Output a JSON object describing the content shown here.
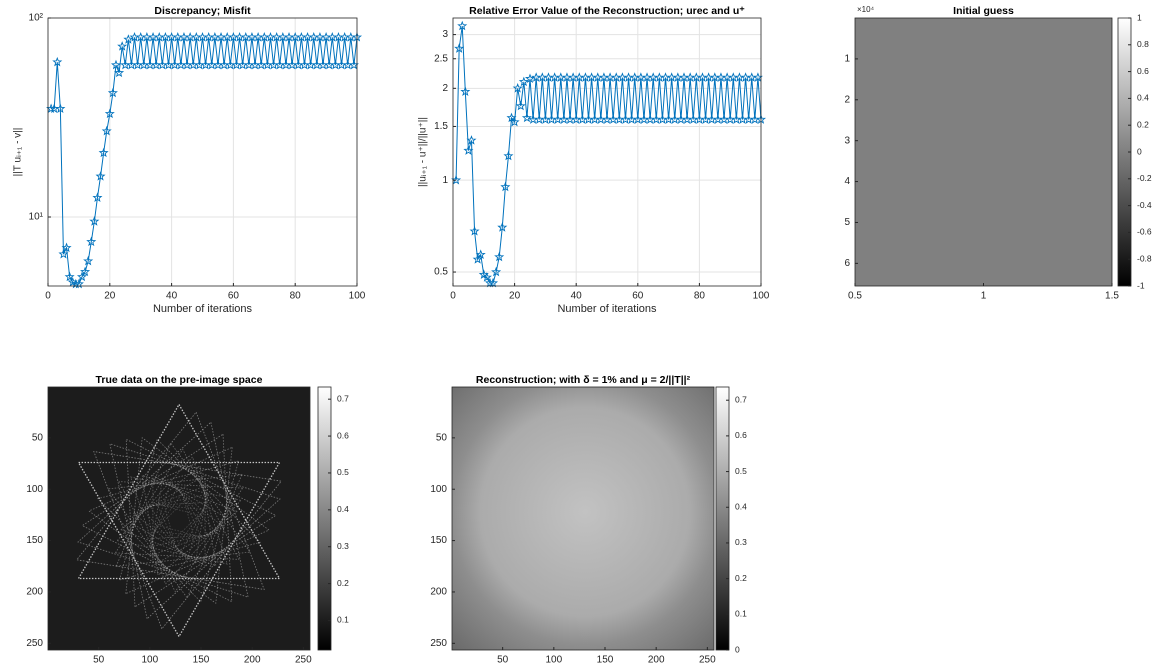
{
  "chart_data": [
    {
      "type": "line",
      "title": "Discrepancy; Misfit",
      "xlabel": "Number of iterations",
      "ylabel": "||T uᵢ₊₁ - v||",
      "yscale": "log",
      "grid": true,
      "xlim": [
        0,
        100
      ],
      "ylim": [
        4.5,
        100
      ],
      "xticks": [
        0,
        20,
        40,
        60,
        80,
        100
      ],
      "yticks": [
        {
          "value": 10,
          "label": "10¹"
        },
        {
          "value": 100,
          "label": "10²"
        }
      ],
      "x": [
        1,
        2,
        3,
        4,
        5,
        6,
        7,
        8,
        9,
        10,
        11,
        12,
        13,
        14,
        15,
        16,
        17,
        18,
        19,
        20,
        21,
        22,
        23,
        24,
        25,
        26,
        27,
        28,
        29,
        30,
        31,
        32,
        33,
        34,
        35,
        36,
        37,
        38,
        39,
        40,
        41,
        42,
        43,
        44,
        45,
        46,
        47,
        48,
        49,
        50,
        51,
        52,
        53,
        54,
        55,
        56,
        57,
        58,
        59,
        60,
        61,
        62,
        63,
        64,
        65,
        66,
        67,
        68,
        69,
        70,
        71,
        72,
        73,
        74,
        75,
        76,
        77,
        78,
        79,
        80,
        81,
        82,
        83,
        84,
        85,
        86,
        87,
        88,
        89,
        90,
        91,
        92,
        93,
        94,
        95,
        96,
        97,
        98,
        99,
        100
      ],
      "series": [
        {
          "color": "#0072bd",
          "marker": "star",
          "values": [
            35,
            35,
            60,
            35,
            6.5,
            7,
            5,
            4.7,
            4.6,
            4.6,
            5,
            5.3,
            6,
            7.5,
            9.5,
            12.5,
            16,
            21,
            27,
            33,
            42,
            58,
            53,
            72,
            58,
            78,
            58,
            80,
            58,
            80,
            58,
            80,
            58,
            80,
            58,
            80,
            58,
            80,
            58,
            80,
            58,
            80,
            58,
            80,
            58,
            80,
            58,
            80,
            58,
            80,
            58,
            80,
            58,
            80,
            58,
            80,
            58,
            80,
            58,
            80,
            58,
            80,
            58,
            80,
            58,
            80,
            58,
            80,
            58,
            80,
            58,
            80,
            58,
            80,
            58,
            80,
            58,
            80,
            58,
            80,
            58,
            80,
            58,
            80,
            58,
            80,
            58,
            80,
            58,
            80,
            58,
            80,
            58,
            80,
            58,
            80,
            58,
            80,
            58,
            80
          ]
        }
      ]
    },
    {
      "type": "line",
      "title": "Relative Error Value of the Reconstruction; urec and u⁺",
      "xlabel": "Number of iterations",
      "ylabel": "||uᵢ₊₁ - u⁺||/||u⁺||",
      "yscale": "log",
      "grid": true,
      "xlim": [
        0,
        100
      ],
      "ylim": [
        0.45,
        3.4
      ],
      "xticks": [
        0,
        20,
        40,
        60,
        80,
        100
      ],
      "yticks": [
        0.5,
        1,
        1.5,
        2,
        2.5,
        3
      ],
      "x": [
        1,
        2,
        3,
        4,
        5,
        6,
        7,
        8,
        9,
        10,
        11,
        12,
        13,
        14,
        15,
        16,
        17,
        18,
        19,
        20,
        21,
        22,
        23,
        24,
        25,
        26,
        27,
        28,
        29,
        30,
        31,
        32,
        33,
        34,
        35,
        36,
        37,
        38,
        39,
        40,
        41,
        42,
        43,
        44,
        45,
        46,
        47,
        48,
        49,
        50,
        51,
        52,
        53,
        54,
        55,
        56,
        57,
        58,
        59,
        60,
        61,
        62,
        63,
        64,
        65,
        66,
        67,
        68,
        69,
        70,
        71,
        72,
        73,
        74,
        75,
        76,
        77,
        78,
        79,
        80,
        81,
        82,
        83,
        84,
        85,
        86,
        87,
        88,
        89,
        90,
        91,
        92,
        93,
        94,
        95,
        96,
        97,
        98,
        99,
        100
      ],
      "series": [
        {
          "color": "#0072bd",
          "marker": "star",
          "values": [
            1.0,
            2.7,
            3.2,
            1.95,
            1.25,
            1.35,
            0.68,
            0.55,
            0.57,
            0.49,
            0.48,
            0.46,
            0.46,
            0.5,
            0.56,
            0.7,
            0.95,
            1.2,
            1.6,
            1.55,
            2.0,
            1.75,
            2.1,
            1.6,
            2.15,
            1.58,
            2.17,
            1.58,
            2.17,
            1.58,
            2.17,
            1.58,
            2.17,
            1.58,
            2.17,
            1.58,
            2.17,
            1.58,
            2.17,
            1.58,
            2.17,
            1.58,
            2.17,
            1.58,
            2.17,
            1.58,
            2.17,
            1.58,
            2.17,
            1.58,
            2.17,
            1.58,
            2.17,
            1.58,
            2.17,
            1.58,
            2.17,
            1.58,
            2.17,
            1.58,
            2.17,
            1.58,
            2.17,
            1.58,
            2.17,
            1.58,
            2.17,
            1.58,
            2.17,
            1.58,
            2.17,
            1.58,
            2.17,
            1.58,
            2.17,
            1.58,
            2.17,
            1.58,
            2.17,
            1.58,
            2.17,
            1.58,
            2.17,
            1.58,
            2.17,
            1.58,
            2.17,
            1.58,
            2.17,
            1.58,
            2.17,
            1.58,
            2.17,
            1.58,
            2.17,
            1.58,
            2.17,
            1.58,
            2.17,
            1.58
          ]
        }
      ]
    },
    {
      "type": "image",
      "title": "Initial guess",
      "colormap": "gray",
      "value": 0,
      "xlim": [
        0.5,
        1.5
      ],
      "ylim": [
        0.5,
        65536.5
      ],
      "xticks": [
        0.5,
        1,
        1.5
      ],
      "yticks": [
        {
          "value": 10000,
          "label": "1"
        },
        {
          "value": 20000,
          "label": "2"
        },
        {
          "value": 30000,
          "label": "3"
        },
        {
          "value": 40000,
          "label": "4"
        },
        {
          "value": 50000,
          "label": "5"
        },
        {
          "value": 60000,
          "label": "6"
        }
      ],
      "y_exponent": "×10⁴",
      "clim": [
        -1,
        1
      ],
      "cticks": [
        -1,
        -0.8,
        -0.6,
        -0.4,
        -0.2,
        0,
        0.2,
        0.4,
        0.6,
        0.8,
        1
      ]
    },
    {
      "type": "image",
      "title": "True data on the pre-image space",
      "colormap": "gray",
      "picture": "star",
      "xlim": [
        0.5,
        256.5
      ],
      "ylim": [
        0.5,
        256.5
      ],
      "xticks": [
        50,
        100,
        150,
        200,
        250
      ],
      "yticks": [
        50,
        100,
        150,
        200,
        250
      ],
      "clim": [
        0.02,
        0.733
      ],
      "cticks": [
        0.1,
        0.2,
        0.3,
        0.4,
        0.5,
        0.6,
        0.7
      ]
    },
    {
      "type": "image",
      "title": "Reconstruction; with δ = 1% and μ = 2/||T||²",
      "colormap": "gray",
      "picture": "blur",
      "xlim": [
        0.5,
        256.5
      ],
      "ylim": [
        0.5,
        256.5
      ],
      "xticks": [
        50,
        100,
        150,
        200,
        250
      ],
      "yticks": [
        50,
        100,
        150,
        200,
        250
      ],
      "clim": [
        0,
        0.737
      ],
      "cticks": [
        0,
        0.1,
        0.2,
        0.3,
        0.4,
        0.5,
        0.6,
        0.7
      ]
    }
  ]
}
